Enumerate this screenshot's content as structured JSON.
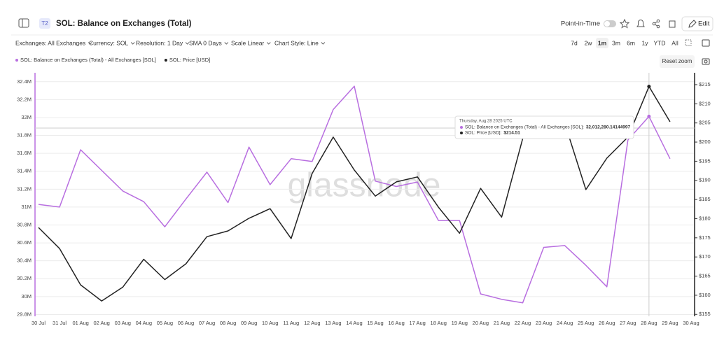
{
  "header": {
    "badge": "T2",
    "title": "SOL: Balance on Exchanges (Total)",
    "point_in_time": "Point-in-Time",
    "edit": "Edit"
  },
  "toolbar": {
    "filters": [
      "Exchanges: All Exchanges",
      "Currency: SOL",
      "Resolution: 1 Day",
      "SMA 0 Days",
      "Scale Linear",
      "Chart Style: Line"
    ],
    "ranges": [
      "7d",
      "2w",
      "1m",
      "3m",
      "6m",
      "1y",
      "YTD",
      "All"
    ],
    "reset_zoom": "Reset zoom"
  },
  "watermark": "glassnode",
  "tooltip": {
    "date": "Thursday, Aug 28 2025 UTC",
    "rows": [
      {
        "label": "SOL: Balance on Exchanges (Total) - All Exchanges [SOL]:",
        "value": "32,012,280.14144997"
      },
      {
        "label": "SOL: Price [USD]:",
        "value": "$214.51"
      }
    ]
  },
  "chart_data": {
    "type": "line",
    "categories": [
      "30 Jul",
      "31 Jul",
      "01 Aug",
      "02 Aug",
      "03 Aug",
      "04 Aug",
      "05 Aug",
      "06 Aug",
      "07 Aug",
      "08 Aug",
      "09 Aug",
      "10 Aug",
      "11 Aug",
      "12 Aug",
      "13 Aug",
      "14 Aug",
      "15 Aug",
      "16 Aug",
      "17 Aug",
      "18 Aug",
      "19 Aug",
      "20 Aug",
      "21 Aug",
      "22 Aug",
      "23 Aug",
      "24 Aug",
      "25 Aug",
      "26 Aug",
      "27 Aug",
      "28 Aug",
      "29 Aug",
      "30 Aug"
    ],
    "series": [
      {
        "name": "SOL: Balance on Exchanges (Total) - All Exchanges [SOL]",
        "color": "#b86ee0",
        "values": [
          31030000,
          31000000,
          31640000,
          31410000,
          31180000,
          31060000,
          30780000,
          31090000,
          31390000,
          31050000,
          31670000,
          31250000,
          31540000,
          31510000,
          32090000,
          32350000,
          31290000,
          31230000,
          31280000,
          30850000,
          30850000,
          30030000,
          29970000,
          29930000,
          30550000,
          30570000,
          30350000,
          30110000,
          31750000,
          32012280,
          31540000,
          null
        ]
      },
      {
        "name": "SOL: Price [USD]",
        "color": "#222222",
        "axis": "y2",
        "values": [
          177.7,
          172.2,
          162.7,
          158.5,
          162.1,
          169.4,
          164.1,
          168.2,
          175.3,
          176.8,
          180.1,
          182.6,
          174.8,
          191.8,
          201.3,
          192.7,
          185.9,
          189.6,
          190.9,
          183.0,
          176.2,
          187.9,
          180.4,
          200.9,
          205.0,
          204.9,
          187.6,
          195.8,
          201.3,
          214.51,
          205.3,
          null
        ]
      }
    ],
    "ylim": [
      29780000,
      32500000
    ],
    "yticks": [
      {
        "value": 29800000,
        "label": "29.8M"
      },
      {
        "value": 30000000,
        "label": "30M"
      },
      {
        "value": 30200000,
        "label": "30.2M"
      },
      {
        "value": 30400000,
        "label": "30.4M"
      },
      {
        "value": 30600000,
        "label": "30.6M"
      },
      {
        "value": 30800000,
        "label": "30.8M"
      },
      {
        "value": 31000000,
        "label": "31M"
      },
      {
        "value": 31200000,
        "label": "31.2M"
      },
      {
        "value": 31400000,
        "label": "31.4M"
      },
      {
        "value": 31600000,
        "label": "31.6M"
      },
      {
        "value": 31800000,
        "label": "31.8M"
      },
      {
        "value": 32000000,
        "label": "32M"
      },
      {
        "value": 32200000,
        "label": "32.2M"
      },
      {
        "value": 32400000,
        "label": "32.4M"
      }
    ],
    "y2lim": [
      154.5,
      218.1
    ],
    "y2ticks": [
      {
        "value": 155,
        "label": "$155"
      },
      {
        "value": 160,
        "label": "$160"
      },
      {
        "value": 165,
        "label": "$165"
      },
      {
        "value": 170,
        "label": "$170"
      },
      {
        "value": 175,
        "label": "$175"
      },
      {
        "value": 180,
        "label": "$180"
      },
      {
        "value": 185,
        "label": "$185"
      },
      {
        "value": 190,
        "label": "$190"
      },
      {
        "value": 195,
        "label": "$195"
      },
      {
        "value": 200,
        "label": "$200"
      },
      {
        "value": 205,
        "label": "$205"
      },
      {
        "value": 210,
        "label": "$210"
      },
      {
        "value": 215,
        "label": "$215"
      }
    ],
    "grid": true
  }
}
